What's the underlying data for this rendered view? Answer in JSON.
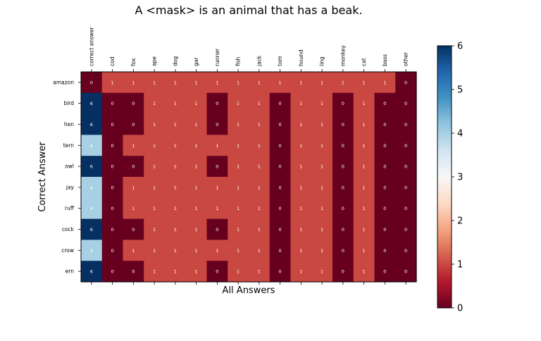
{
  "chart_data": {
    "type": "heatmap",
    "title": "A <mask> is an animal that has a beak.",
    "xlabel": "All Answers",
    "ylabel": "Correct Answer",
    "x_categories": [
      "correct answer",
      "cod",
      "fox",
      "ape",
      "dog",
      "gar",
      "runner",
      "fish",
      "jack",
      "tom",
      "hound",
      "ling",
      "monkey",
      "cat",
      "bass",
      "other"
    ],
    "y_categories": [
      "amazon",
      "bird",
      "hen",
      "tern",
      "owl",
      "jay",
      "ruff",
      "cock",
      "crow",
      "ern"
    ],
    "values": [
      [
        0,
        1,
        1,
        1,
        1,
        1,
        1,
        1,
        1,
        1,
        1,
        1,
        1,
        1,
        1,
        0
      ],
      [
        6,
        0,
        0,
        1,
        1,
        1,
        0,
        1,
        1,
        0,
        1,
        1,
        0,
        1,
        0,
        0
      ],
      [
        6,
        0,
        0,
        1,
        1,
        1,
        0,
        1,
        1,
        0,
        1,
        1,
        0,
        1,
        0,
        0
      ],
      [
        4,
        0,
        1,
        1,
        1,
        1,
        1,
        1,
        1,
        0,
        1,
        1,
        0,
        1,
        0,
        0
      ],
      [
        6,
        0,
        0,
        1,
        1,
        1,
        0,
        1,
        1,
        0,
        1,
        1,
        0,
        1,
        0,
        0
      ],
      [
        4,
        0,
        1,
        1,
        1,
        1,
        1,
        1,
        1,
        0,
        1,
        1,
        0,
        1,
        0,
        0
      ],
      [
        4,
        0,
        1,
        1,
        1,
        1,
        1,
        1,
        1,
        0,
        1,
        1,
        0,
        1,
        0,
        0
      ],
      [
        6,
        0,
        0,
        1,
        1,
        1,
        0,
        1,
        1,
        0,
        1,
        1,
        0,
        1,
        0,
        0
      ],
      [
        4,
        0,
        1,
        1,
        1,
        1,
        1,
        1,
        1,
        0,
        1,
        1,
        0,
        1,
        0,
        0
      ],
      [
        6,
        0,
        0,
        1,
        1,
        1,
        0,
        1,
        1,
        0,
        1,
        1,
        0,
        1,
        0,
        0
      ]
    ],
    "colorscale": "RdBu",
    "vmin": 0,
    "vmax": 6,
    "colorbar_ticks": [
      "0",
      "1",
      "2",
      "3",
      "4",
      "5",
      "6"
    ],
    "annotations": "cell values shown in each cell",
    "grid": false
  }
}
